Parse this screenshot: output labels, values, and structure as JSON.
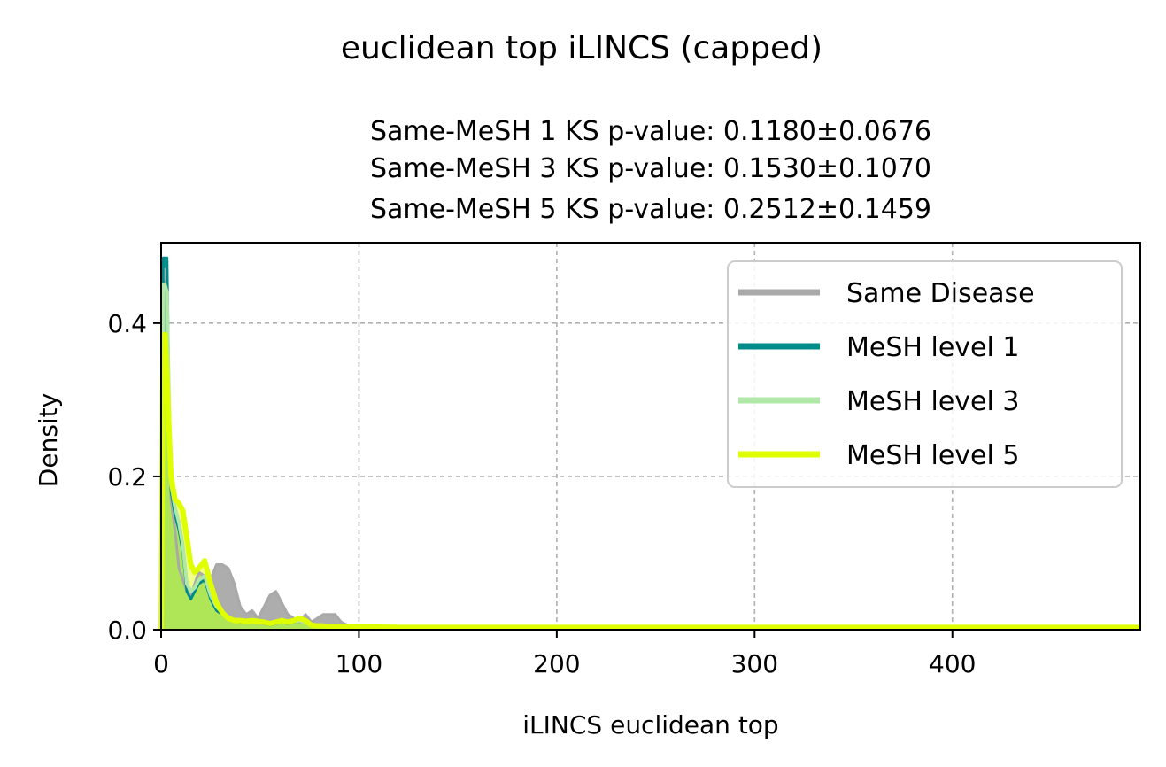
{
  "figure_title": "euclidean top iLINCS (capped)",
  "chart_data": {
    "type": "area",
    "title": "euclidean top iLINCS (capped)",
    "subtitle_lines": [
      "Same-MeSH 1 KS p-value: 0.1180±0.0676",
      "Same-MeSH 3 KS p-value: 0.1530±0.1070",
      "Same-MeSH 5 KS p-value: 0.2512±0.1459"
    ],
    "xlabel": "iLINCS euclidean top",
    "ylabel": "Density",
    "xlim": [
      0,
      495
    ],
    "ylim": [
      0,
      0.505
    ],
    "xticks": [
      0,
      100,
      200,
      300,
      400
    ],
    "xtick_labels": [
      "0",
      "100",
      "200",
      "300",
      "400"
    ],
    "yticks": [
      0.0,
      0.2,
      0.4
    ],
    "ytick_labels": [
      "0.0",
      "0.2",
      "0.4"
    ],
    "grid": true,
    "legend_position": "top-right",
    "series": [
      {
        "name": "Same Disease",
        "color": "#a9a9a9",
        "x": [
          0,
          1,
          2,
          3,
          4,
          5,
          7,
          9,
          11,
          13,
          15,
          17,
          19,
          22,
          25,
          28,
          31,
          34,
          37,
          40,
          43,
          46,
          49,
          52,
          55,
          58,
          61,
          64,
          67,
          70,
          73,
          76,
          79,
          82,
          85,
          88,
          91,
          95,
          100,
          120,
          150,
          200,
          300,
          400,
          495
        ],
        "y": [
          0.0,
          0.46,
          0.47,
          0.44,
          0.28,
          0.17,
          0.13,
          0.08,
          0.065,
          0.05,
          0.045,
          0.06,
          0.075,
          0.07,
          0.065,
          0.085,
          0.085,
          0.08,
          0.06,
          0.03,
          0.02,
          0.025,
          0.015,
          0.03,
          0.045,
          0.05,
          0.035,
          0.02,
          0.015,
          0.01,
          0.02,
          0.01,
          0.015,
          0.02,
          0.02,
          0.02,
          0.01,
          0.005,
          0.003,
          0.003,
          0.003,
          0.003,
          0.003,
          0.003,
          0.003
        ]
      },
      {
        "name": "MeSH level 1",
        "color": "#008b8b",
        "x": [
          0,
          1,
          2,
          3,
          4,
          5,
          7,
          9,
          11,
          13,
          15,
          17,
          19,
          22,
          25,
          28,
          31,
          34,
          37,
          40,
          43,
          46,
          49,
          52,
          55,
          58,
          61,
          64,
          67,
          70,
          73,
          76,
          79,
          82,
          85,
          88,
          91,
          95,
          100,
          120,
          150,
          200,
          300,
          400,
          495
        ],
        "y": [
          0.0,
          0.485,
          0.485,
          0.485,
          0.3,
          0.18,
          0.15,
          0.13,
          0.1,
          0.05,
          0.04,
          0.05,
          0.06,
          0.065,
          0.04,
          0.025,
          0.02,
          0.015,
          0.012,
          0.01,
          0.01,
          0.012,
          0.01,
          0.008,
          0.006,
          0.008,
          0.01,
          0.008,
          0.01,
          0.012,
          0.01,
          0.006,
          0.004,
          0.004,
          0.004,
          0.004,
          0.004,
          0.004,
          0.004,
          0.003,
          0.003,
          0.003,
          0.003,
          0.003,
          0.003
        ]
      },
      {
        "name": "MeSH level 3",
        "color": "#b0e8a8",
        "x": [
          0,
          1,
          2,
          3,
          4,
          5,
          7,
          9,
          11,
          13,
          15,
          17,
          19,
          22,
          25,
          28,
          31,
          34,
          37,
          40,
          43,
          46,
          49,
          52,
          55,
          58,
          61,
          64,
          67,
          70,
          73,
          76,
          79,
          82,
          85,
          88,
          91,
          95,
          100,
          120,
          150,
          200,
          300,
          400,
          495
        ],
        "y": [
          0.0,
          0.45,
          0.45,
          0.44,
          0.3,
          0.19,
          0.16,
          0.14,
          0.11,
          0.06,
          0.05,
          0.055,
          0.065,
          0.07,
          0.045,
          0.03,
          0.022,
          0.016,
          0.013,
          0.011,
          0.011,
          0.012,
          0.011,
          0.009,
          0.007,
          0.009,
          0.011,
          0.009,
          0.011,
          0.012,
          0.01,
          0.006,
          0.004,
          0.004,
          0.004,
          0.004,
          0.004,
          0.004,
          0.004,
          0.003,
          0.003,
          0.003,
          0.003,
          0.003,
          0.003
        ]
      },
      {
        "name": "MeSH level 5",
        "color": "#dfff00",
        "x": [
          0,
          1,
          2,
          3,
          4,
          5,
          7,
          9,
          11,
          13,
          15,
          17,
          19,
          22,
          25,
          28,
          31,
          34,
          37,
          40,
          43,
          46,
          49,
          52,
          55,
          58,
          61,
          64,
          67,
          70,
          73,
          76,
          79,
          82,
          85,
          88,
          91,
          95,
          100,
          120,
          150,
          200,
          300,
          400,
          495
        ],
        "y": [
          0.0,
          0.385,
          0.385,
          0.33,
          0.26,
          0.2,
          0.17,
          0.165,
          0.155,
          0.12,
          0.085,
          0.075,
          0.08,
          0.09,
          0.06,
          0.035,
          0.022,
          0.015,
          0.012,
          0.012,
          0.011,
          0.012,
          0.011,
          0.01,
          0.008,
          0.01,
          0.012,
          0.01,
          0.012,
          0.015,
          0.012,
          0.006,
          0.005,
          0.005,
          0.004,
          0.004,
          0.004,
          0.004,
          0.004,
          0.003,
          0.003,
          0.003,
          0.003,
          0.003,
          0.003
        ]
      }
    ]
  }
}
